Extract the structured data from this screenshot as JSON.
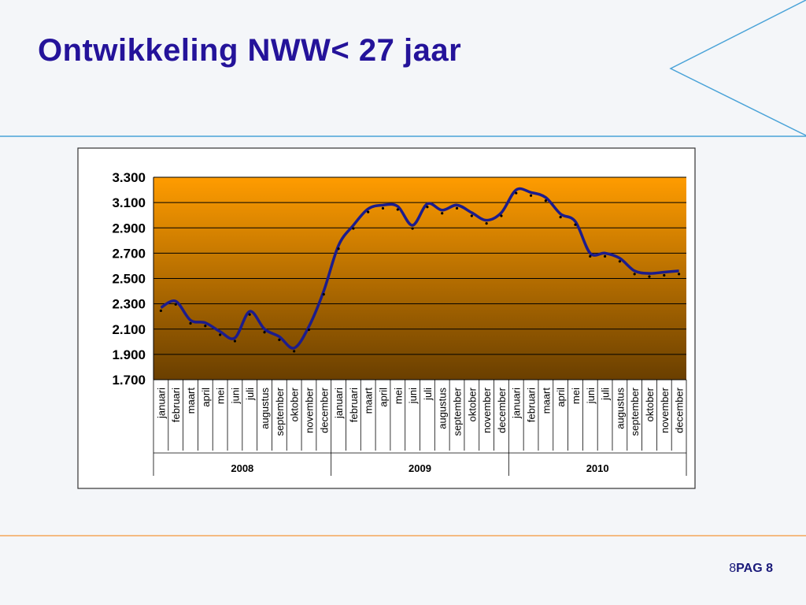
{
  "title": "Ontwikkeling NWW< 27 jaar",
  "footer": {
    "number": "8",
    "label": "PAG 8"
  },
  "chart_data": {
    "type": "line",
    "categories": [
      "januari",
      "februari",
      "maart",
      "april",
      "mei",
      "juni",
      "juli",
      "augustus",
      "september",
      "oktober",
      "november",
      "december",
      "januari",
      "februari",
      "maart",
      "april",
      "mei",
      "juni",
      "juli",
      "augustus",
      "september",
      "oktober",
      "november",
      "december",
      "januari",
      "februari",
      "maart",
      "april",
      "mei",
      "juni",
      "juli",
      "augustus",
      "september",
      "oktober",
      "november",
      "december"
    ],
    "groups": [
      "2008",
      "2009",
      "2010"
    ],
    "values": [
      2270,
      2320,
      2170,
      2150,
      2080,
      2030,
      2240,
      2100,
      2040,
      1950,
      2120,
      2400,
      2760,
      2920,
      3050,
      3080,
      3070,
      2920,
      3090,
      3040,
      3080,
      3020,
      2960,
      3020,
      3200,
      3180,
      3140,
      3010,
      2950,
      2700,
      2700,
      2660,
      2560,
      2540,
      2550,
      2560
    ],
    "color": "#1c1c8c",
    "ylim": [
      1700,
      3300
    ],
    "yticks": [
      {
        "value": 1700,
        "label": "1.700"
      },
      {
        "value": 1900,
        "label": "1.900"
      },
      {
        "value": 2100,
        "label": "2.100"
      },
      {
        "value": 2300,
        "label": "2.300"
      },
      {
        "value": 2500,
        "label": "2.500"
      },
      {
        "value": 2700,
        "label": "2.700"
      },
      {
        "value": 2900,
        "label": "2.900"
      },
      {
        "value": 3100,
        "label": "3.100"
      },
      {
        "value": 3300,
        "label": "3.300"
      }
    ],
    "grid": true
  }
}
